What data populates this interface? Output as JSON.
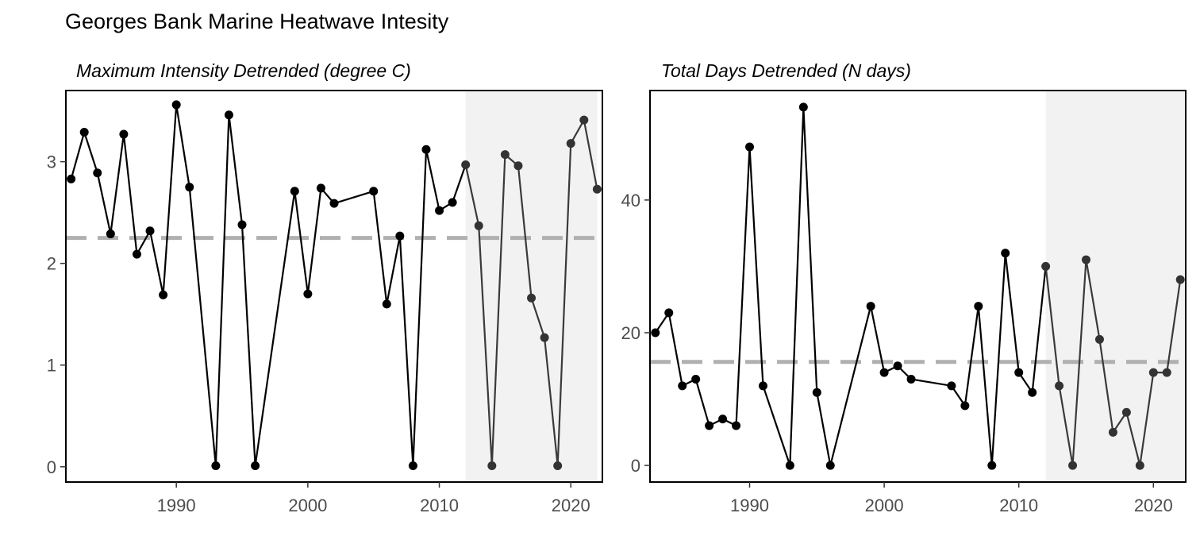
{
  "title": "Georges Bank Marine Heatwave Intesity",
  "chart_data": [
    {
      "type": "line",
      "subtitle": "Maximum Intensity Detrended (degree C)",
      "xlim": [
        1981.6,
        2022.4
      ],
      "ylim": [
        -0.15,
        3.7
      ],
      "xticks": [
        1990,
        2000,
        2010,
        2020
      ],
      "yticks": [
        0,
        1,
        2,
        3
      ],
      "reference_line": 2.25,
      "shaded_x_range": [
        2012,
        2022
      ],
      "grid": false,
      "x": [
        1982,
        1983,
        1984,
        1985,
        1986,
        1987,
        1988,
        1989,
        1990,
        1991,
        1993,
        1994,
        1995,
        1996,
        1999,
        2000,
        2001,
        2002,
        2005,
        2006,
        2007,
        2008,
        2009,
        2010,
        2011,
        2012,
        2013,
        2014,
        2015,
        2016,
        2017,
        2018,
        2019,
        2020,
        2021,
        2022
      ],
      "y": [
        2.83,
        3.29,
        2.89,
        2.29,
        3.27,
        2.09,
        2.32,
        1.69,
        3.56,
        2.75,
        0.01,
        3.46,
        2.38,
        0.01,
        2.71,
        1.7,
        2.74,
        2.59,
        2.71,
        1.6,
        2.27,
        0.01,
        3.12,
        2.52,
        2.6,
        2.97,
        2.37,
        0.01,
        3.07,
        2.96,
        1.66,
        1.27,
        0.01,
        3.18,
        3.41,
        2.73
      ]
    },
    {
      "type": "line",
      "subtitle": "Total Days Detrended (N days)",
      "xlim": [
        1982.6,
        2022.4
      ],
      "ylim": [
        -2.5,
        56.5
      ],
      "xticks": [
        1990,
        2000,
        2010,
        2020
      ],
      "yticks": [
        0,
        20,
        40
      ],
      "reference_line": 15.6,
      "shaded_x_range": [
        2012,
        2022.4
      ],
      "grid": false,
      "x": [
        1983,
        1984,
        1985,
        1986,
        1987,
        1988,
        1989,
        1990,
        1991,
        1993,
        1994,
        1995,
        1996,
        1999,
        2000,
        2001,
        2002,
        2005,
        2006,
        2007,
        2008,
        2009,
        2010,
        2011,
        2012,
        2013,
        2014,
        2015,
        2016,
        2017,
        2018,
        2019,
        2020,
        2021,
        2022
      ],
      "y": [
        20,
        23,
        12,
        13,
        6,
        7,
        6,
        48,
        12,
        0,
        54,
        11,
        0,
        24,
        14,
        15,
        13,
        12,
        9,
        24,
        0,
        32,
        14,
        11,
        30,
        12,
        0,
        31,
        19,
        5,
        8,
        0,
        14,
        14,
        28
      ]
    }
  ]
}
